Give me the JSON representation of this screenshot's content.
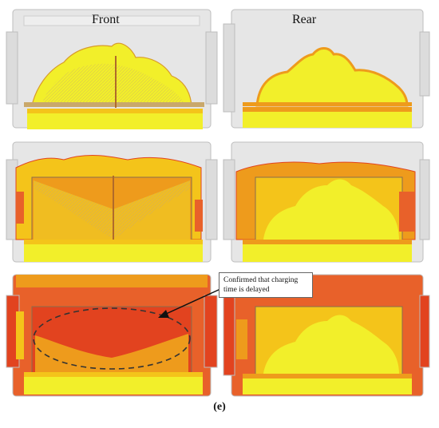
{
  "labels": {
    "front": "Front",
    "rear": "Rear"
  },
  "callout": {
    "text": "Confirmed that charging time is delayed"
  },
  "caption": "(e)",
  "colors": {
    "frame_gray": "#d9d9d9",
    "yellow": "#f2ef2a",
    "yellow_orange": "#f4c41a",
    "orange": "#ee9b1c",
    "dark_orange": "#e8612a",
    "red_orange": "#e2431f"
  }
}
